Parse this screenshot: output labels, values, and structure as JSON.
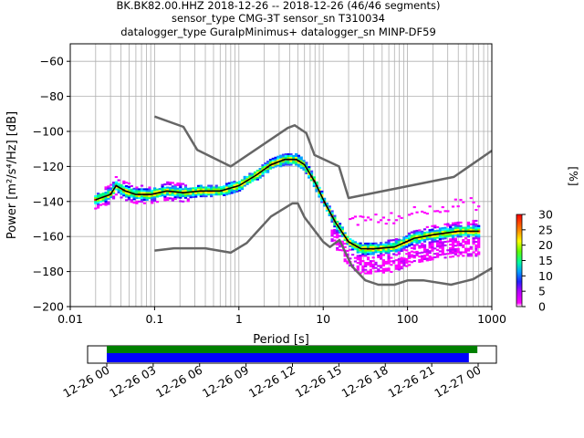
{
  "chart_data": [
    {
      "type": "heatmap",
      "title_lines": [
        "BK.BK82.00.HHZ   2018-12-26 -- 2018-12-26  (46/46 segments)",
        "sensor_type CMG-3T sensor_sn T310034",
        "datalogger_type GuralpMinimus+ datalogger_sn MINP-DF59"
      ],
      "xlabel": "Period [s]",
      "ylabel": "Power [m²/s⁴/Hz] [dB]",
      "xscale": "log",
      "xlim": [
        0.01,
        1000
      ],
      "ylim": [
        -200,
        -50
      ],
      "x_tick_labels": [
        "0.01",
        "0.1",
        "1",
        "10",
        "100",
        "1000"
      ],
      "y_ticks": [
        -60,
        -80,
        -100,
        -120,
        -140,
        -160,
        -180,
        -200
      ],
      "y_tick_labels": [
        "−60",
        "−80",
        "−100",
        "−120",
        "−140",
        "−160",
        "−180",
        "−200"
      ],
      "grid": true,
      "colorbar": {
        "label": "[%]",
        "min": 0,
        "max": 30,
        "ticks": [
          "0",
          "5",
          "10",
          "15",
          "20",
          "25",
          "30"
        ]
      },
      "series": [
        {
          "role": "noise-model-high",
          "color": "#666666",
          "points": [
            [
              0.1,
              -91.5
            ],
            [
              0.22,
              -97.4
            ],
            [
              0.32,
              -110.5
            ],
            [
              0.8,
              -120
            ],
            [
              3.8,
              -98
            ],
            [
              4.6,
              -96.5
            ],
            [
              6.3,
              -101
            ],
            [
              7.9,
              -113.5
            ],
            [
              15.4,
              -120
            ],
            [
              20,
              -138
            ],
            [
              354.8,
              -126
            ],
            [
              1000,
              -111
            ]
          ]
        },
        {
          "role": "noise-model-low",
          "color": "#666666",
          "points": [
            [
              0.1,
              -168
            ],
            [
              0.17,
              -166.7
            ],
            [
              0.4,
              -166.7
            ],
            [
              0.8,
              -169.2
            ],
            [
              1.24,
              -163.7
            ],
            [
              2.4,
              -148.6
            ],
            [
              4.3,
              -141.1
            ],
            [
              5,
              -141.1
            ],
            [
              6,
              -149
            ],
            [
              10,
              -163
            ],
            [
              12,
              -166
            ],
            [
              15.6,
              -162
            ],
            [
              21.9,
              -177
            ],
            [
              31.6,
              -185
            ],
            [
              45,
              -187.5
            ],
            [
              70,
              -187.5
            ],
            [
              101,
              -185
            ],
            [
              154,
              -185
            ],
            [
              328,
              -187.5
            ],
            [
              600,
              -184.4
            ],
            [
              1000,
              -178
            ]
          ]
        },
        {
          "role": "mode-ppsd",
          "color": "#000000",
          "points": [
            [
              0.02,
              -139
            ],
            [
              0.03,
              -136
            ],
            [
              0.035,
              -131
            ],
            [
              0.045,
              -134
            ],
            [
              0.06,
              -136
            ],
            [
              0.09,
              -136
            ],
            [
              0.14,
              -134
            ],
            [
              0.22,
              -135
            ],
            [
              0.35,
              -134
            ],
            [
              0.6,
              -134
            ],
            [
              1,
              -131
            ],
            [
              1.6,
              -125
            ],
            [
              2.4,
              -119
            ],
            [
              3.5,
              -116
            ],
            [
              4.8,
              -116
            ],
            [
              6,
              -119
            ],
            [
              8,
              -129
            ],
            [
              10.5,
              -141
            ],
            [
              14,
              -152
            ],
            [
              20,
              -163
            ],
            [
              28,
              -167
            ],
            [
              40,
              -167
            ],
            [
              70,
              -166
            ],
            [
              120,
              -161
            ],
            [
              200,
              -159
            ],
            [
              400,
              -157
            ],
            [
              700,
              -157
            ]
          ]
        }
      ]
    },
    {
      "type": "timeline",
      "x_tick_labels": [
        "12-26 00",
        "12-26 03",
        "12-26 06",
        "12-26 09",
        "12-26 12",
        "12-26 15",
        "12-26 18",
        "12-26 21",
        "12-27 00"
      ],
      "bars": [
        {
          "role": "data-available",
          "color": "#008000",
          "start_hours": 0.0,
          "end_hours": 23.95
        },
        {
          "role": "data-used",
          "color": "#0000ff",
          "start_hours": 0.0,
          "end_hours": 23.4
        }
      ]
    }
  ]
}
